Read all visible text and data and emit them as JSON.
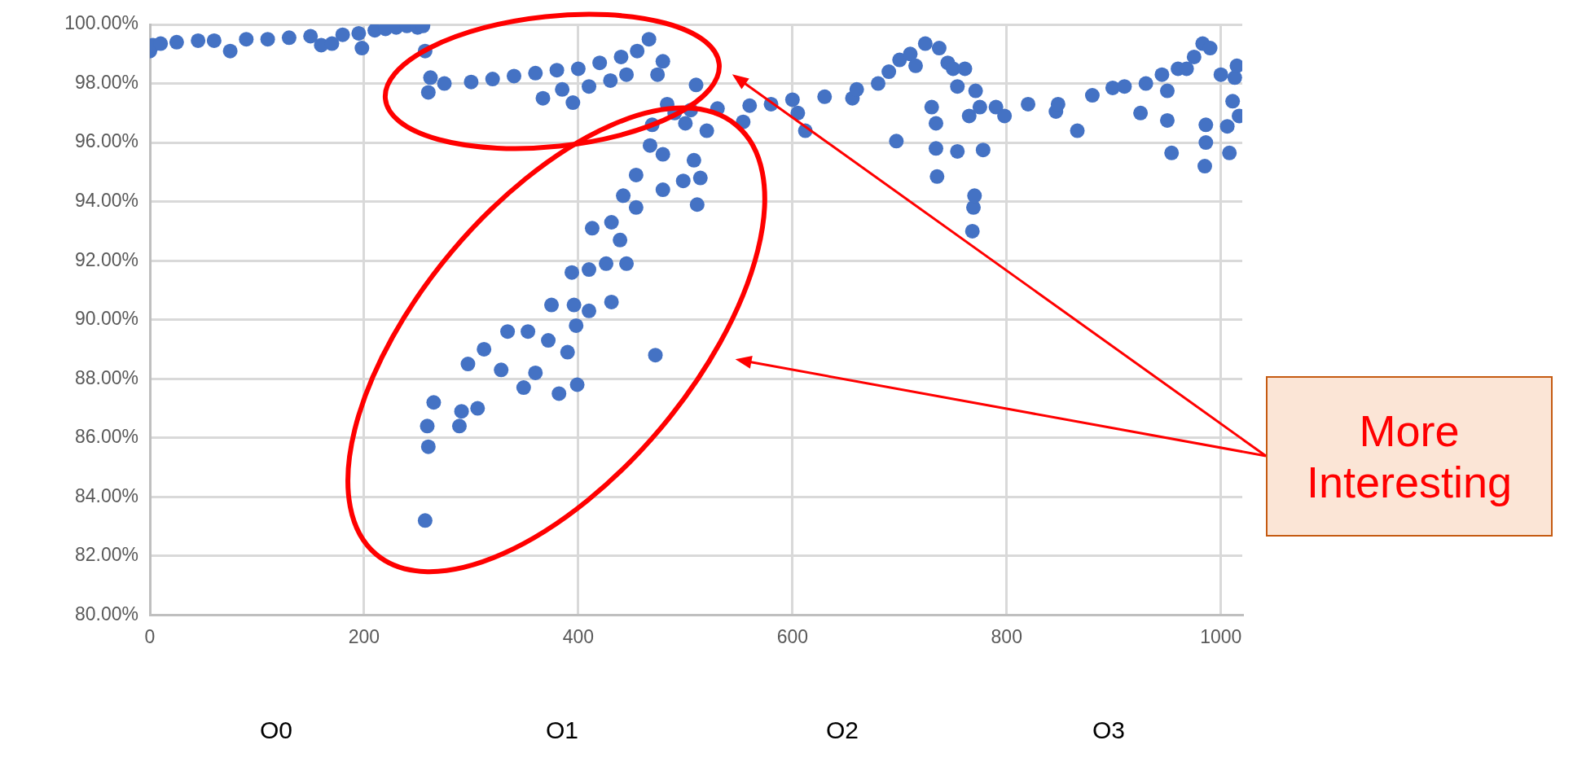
{
  "chart_data": {
    "type": "scatter",
    "marker": "circle",
    "grid": true,
    "xlim": [
      0,
      1020
    ],
    "xticks": [
      0,
      200,
      400,
      600,
      800,
      1000
    ],
    "ylim": [
      80,
      100
    ],
    "yticks": [
      {
        "value": 80,
        "label": "80.00%"
      },
      {
        "value": 82,
        "label": "82.00%"
      },
      {
        "value": 84,
        "label": "84.00%"
      },
      {
        "value": 86,
        "label": "86.00%"
      },
      {
        "value": 88,
        "label": "88.00%"
      },
      {
        "value": 90,
        "label": "90.00%"
      },
      {
        "value": 92,
        "label": "92.00%"
      },
      {
        "value": 94,
        "label": "94.00%"
      },
      {
        "value": 96,
        "label": "96.00%"
      },
      {
        "value": 98,
        "label": "98.00%"
      },
      {
        "value": 100,
        "label": "100.00%"
      }
    ],
    "annotations": [
      "O0",
      "O1",
      "O2",
      "O3",
      "More Interesting"
    ],
    "series": [
      {
        "color": "#4472c4",
        "x": [
          0,
          3,
          10,
          25,
          45,
          60,
          75,
          90,
          110,
          130,
          150,
          160,
          170,
          180,
          195,
          198,
          210,
          220,
          230,
          240,
          250,
          255,
          257,
          260,
          262,
          275,
          300,
          320,
          340,
          360,
          367,
          380,
          385,
          395,
          400,
          410,
          420,
          430,
          440,
          445,
          455,
          466,
          474,
          479,
          257,
          260,
          259,
          265,
          289,
          297,
          291,
          306,
          312,
          334,
          328,
          353,
          349,
          360,
          372,
          382,
          390,
          399,
          398,
          375,
          396,
          410,
          431,
          394,
          410,
          426,
          445,
          413,
          431,
          439,
          442,
          454,
          454,
          467,
          479,
          479,
          498,
          508,
          514,
          511,
          472,
          469,
          483,
          490,
          500,
          505,
          510,
          520,
          530,
          554,
          560,
          580,
          600,
          605,
          612,
          630,
          656,
          660,
          680,
          690,
          697,
          700,
          710,
          715,
          724,
          730,
          734,
          734,
          735,
          737,
          745,
          750,
          754,
          754,
          761,
          765,
          768,
          769,
          770,
          771,
          775,
          778,
          790,
          798,
          820,
          846,
          848,
          866,
          880,
          899,
          910,
          925,
          930,
          945,
          950,
          950,
          954,
          960,
          968,
          975,
          983,
          986,
          986,
          985,
          990,
          1000,
          1006,
          1008,
          1011,
          1013,
          1015,
          1017
        ],
        "values": [
          99.1,
          99.3,
          99.35,
          99.4,
          99.45,
          99.45,
          99.1,
          99.5,
          99.5,
          99.55,
          99.6,
          99.3,
          99.35,
          99.65,
          99.7,
          99.2,
          99.8,
          99.85,
          99.9,
          99.95,
          99.9,
          99.95,
          99.1,
          97.7,
          98.2,
          98.0,
          98.05,
          98.15,
          98.25,
          98.35,
          97.5,
          98.45,
          97.8,
          97.35,
          98.5,
          97.9,
          98.7,
          98.1,
          98.9,
          98.3,
          99.1,
          99.5,
          98.3,
          98.75,
          83.2,
          85.7,
          86.4,
          87.2,
          86.4,
          88.5,
          86.9,
          87.0,
          89.0,
          89.6,
          88.3,
          89.6,
          87.7,
          88.2,
          89.3,
          87.5,
          88.9,
          87.8,
          89.8,
          90.5,
          90.5,
          90.3,
          90.6,
          91.6,
          91.7,
          91.9,
          91.9,
          93.1,
          93.3,
          92.7,
          94.2,
          93.8,
          94.9,
          95.9,
          95.6,
          94.4,
          94.7,
          95.4,
          94.8,
          93.9,
          88.8,
          96.6,
          97.3,
          97.0,
          96.65,
          97.1,
          97.95,
          96.4,
          97.15,
          96.7,
          97.25,
          97.3,
          97.45,
          97.0,
          96.4,
          97.55,
          97.5,
          97.8,
          98.0,
          98.4,
          96.05,
          98.8,
          99.0,
          98.6,
          99.35,
          97.2,
          96.65,
          95.8,
          94.85,
          99.2,
          98.7,
          98.5,
          97.9,
          95.7,
          98.5,
          96.9,
          93.0,
          93.8,
          94.2,
          97.75,
          97.2,
          95.75,
          97.2,
          96.9,
          97.3,
          97.05,
          97.3,
          96.4,
          97.6,
          97.85,
          97.9,
          97.0,
          98.0,
          98.3,
          96.75,
          97.75,
          95.65,
          98.5,
          98.5,
          98.9,
          99.35,
          96.0,
          96.6,
          95.2,
          99.2,
          98.3,
          96.55,
          95.65,
          97.4,
          98.2,
          98.6,
          96.9
        ]
      }
    ]
  }
}
